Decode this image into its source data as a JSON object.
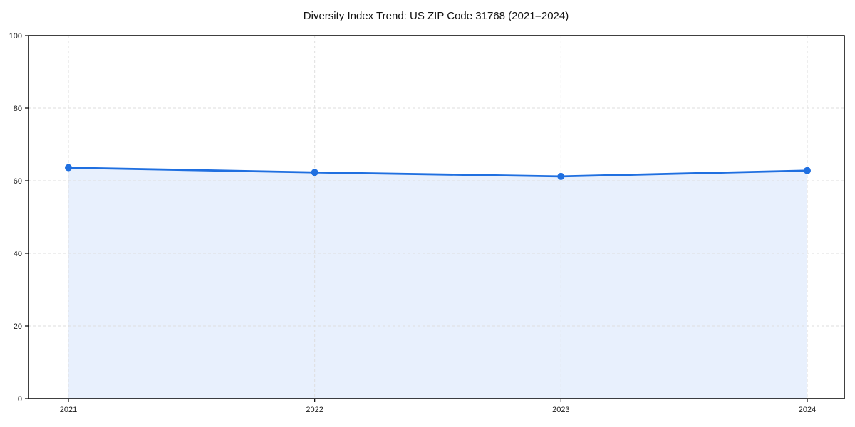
{
  "chart_data": {
    "type": "area",
    "title": "Diversity Index Trend: US ZIP Code 31768 (2021–2024)",
    "x": [
      2021,
      2022,
      2023,
      2024
    ],
    "xticklabels": [
      "2021",
      "2022",
      "2023",
      "2024"
    ],
    "series": [
      {
        "name": "Diversity Index",
        "values": [
          63.6,
          62.3,
          61.2,
          62.8
        ]
      }
    ],
    "xlabel": "",
    "ylabel": "",
    "ylim": [
      0,
      100
    ],
    "yticks": [
      0,
      20,
      40,
      60,
      80,
      100
    ],
    "grid": true,
    "grid_style": "dashed",
    "legend": false,
    "markers": true,
    "colors": {
      "line": "#1f6fe0",
      "marker": "#1f6fe0",
      "fill": "#e8f0fd",
      "gridline": "#dedede",
      "spine": "#000000",
      "tick_label": "#1a1a1a",
      "background": "#ffffff"
    }
  }
}
